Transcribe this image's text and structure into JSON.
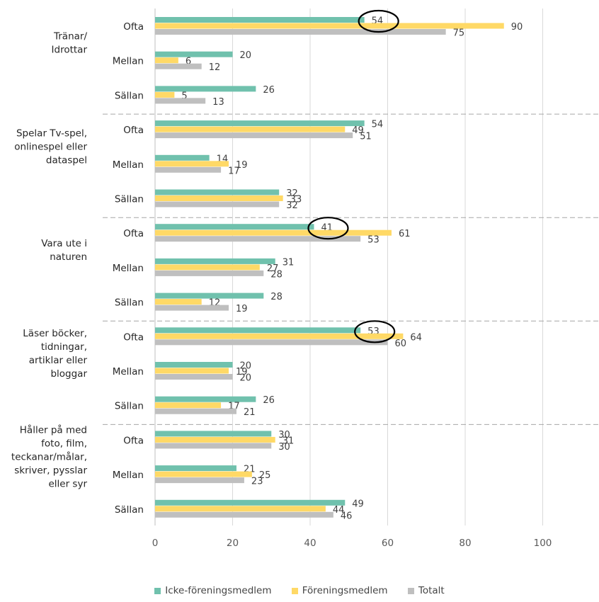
{
  "chart_data": {
    "type": "bar",
    "orientation": "horizontal",
    "groups": [
      {
        "label": "Tränar/\nIdrottar",
        "rows": [
          {
            "label": "Ofta",
            "values": [
              54,
              90,
              75
            ],
            "circled": true
          },
          {
            "label": "Mellan",
            "values": [
              20,
              6,
              12
            ]
          },
          {
            "label": "Sällan",
            "values": [
              26,
              5,
              13
            ]
          }
        ]
      },
      {
        "label": "Spelar Tv-spel,\nonlinespel eller\ndataspel",
        "rows": [
          {
            "label": "Ofta",
            "values": [
              54,
              49,
              51
            ]
          },
          {
            "label": "Mellan",
            "values": [
              14,
              19,
              17
            ]
          },
          {
            "label": "Sällan",
            "values": [
              32,
              33,
              32
            ]
          }
        ]
      },
      {
        "label": "Vara ute i\nnaturen",
        "rows": [
          {
            "label": "Ofta",
            "values": [
              41,
              61,
              53
            ],
            "circled": true
          },
          {
            "label": "Mellan",
            "values": [
              31,
              27,
              28
            ]
          },
          {
            "label": "Sällan",
            "values": [
              28,
              12,
              19
            ]
          }
        ]
      },
      {
        "label": "Läser böcker,\ntidningar,\nartiklar eller\nbloggar",
        "rows": [
          {
            "label": "Ofta",
            "values": [
              53,
              64,
              60
            ],
            "circled": true
          },
          {
            "label": "Mellan",
            "values": [
              20,
              19,
              20
            ]
          },
          {
            "label": "Sällan",
            "values": [
              26,
              17,
              21
            ]
          }
        ]
      },
      {
        "label": "Håller på med\nfoto, film,\nteckanar/målar,\nskriver, pysslar\neller syr",
        "rows": [
          {
            "label": "Ofta",
            "values": [
              30,
              31,
              30
            ]
          },
          {
            "label": "Mellan",
            "values": [
              21,
              25,
              23
            ]
          },
          {
            "label": "Sällan",
            "values": [
              49,
              44,
              46
            ]
          }
        ]
      }
    ],
    "series": [
      {
        "name": "Icke-föreningsmedlem",
        "color": "#70c1ad"
      },
      {
        "name": "Föreningsmedlem",
        "color": "#ffd966"
      },
      {
        "name": "Totalt",
        "color": "#bfbfbf"
      }
    ],
    "xlim": [
      0,
      110
    ],
    "xticks": [
      0,
      20,
      40,
      60,
      80,
      100
    ],
    "grid": "vertical",
    "group_separators": "dashed",
    "legend_position": "bottom"
  }
}
